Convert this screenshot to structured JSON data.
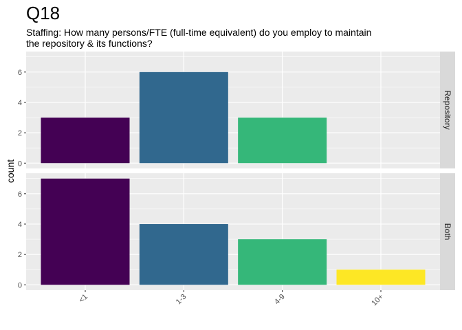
{
  "chart_data": {
    "type": "bar",
    "title": "Q18",
    "subtitle": [
      "Staffing: How many persons/FTE (full-time equivalent) do you employ to maintain",
      "the repository & its functions?"
    ],
    "xlabel": "",
    "ylabel": "count",
    "categories": [
      "<1",
      "1-3",
      "4-9",
      "10+"
    ],
    "colors": [
      "#440154",
      "#31688e",
      "#35b779",
      "#fde725"
    ],
    "yticks": [
      0,
      2,
      4,
      6
    ],
    "ylim": [
      -0.35,
      7.35
    ],
    "grid": true,
    "facets": [
      {
        "name": "Repository",
        "values": [
          3,
          6,
          3,
          0
        ]
      },
      {
        "name": "Both",
        "values": [
          7,
          4,
          3,
          1
        ]
      }
    ]
  }
}
